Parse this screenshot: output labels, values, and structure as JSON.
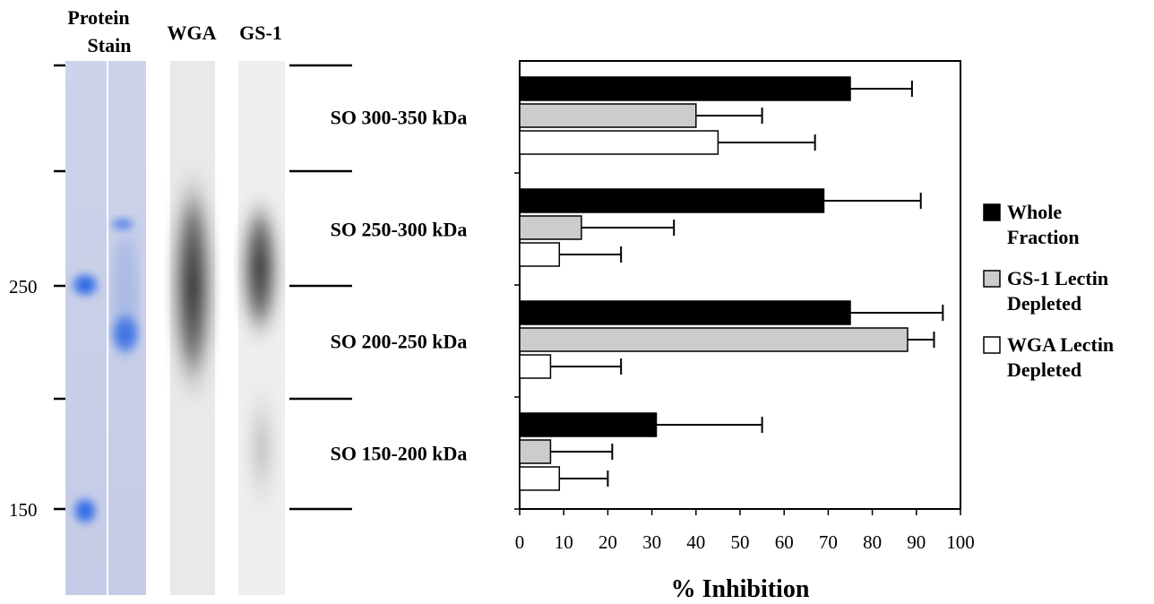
{
  "gel": {
    "headers": {
      "protein_stain_line1": "Protein",
      "protein_stain_line2": "Stain",
      "wga": "WGA",
      "gs1": "GS-1"
    },
    "markers": [
      "250",
      "150"
    ],
    "lane_colors": {
      "protein_background": "#c9cfe6",
      "protein_band": "#1f5fe0",
      "lectin_blot": "#2a2a2a"
    }
  },
  "chart_data": {
    "type": "bar",
    "orientation": "horizontal",
    "categories": [
      "SO 300-350 kDa",
      "SO 250-300 kDa",
      "SO 200-250 kDa",
      "SO 150-200 kDa"
    ],
    "series": [
      {
        "name": "Whole Fraction",
        "values": [
          75,
          69,
          75,
          31
        ],
        "errors": [
          14,
          22,
          21,
          24
        ],
        "color": "#000000"
      },
      {
        "name": "GS-1 Lectin Depleted",
        "values": [
          40,
          14,
          88,
          7
        ],
        "errors": [
          15,
          21,
          6,
          14
        ],
        "color": "#cccccc"
      },
      {
        "name": "WGA Lectin Depleted",
        "values": [
          45,
          9,
          7,
          9
        ],
        "errors": [
          22,
          14,
          16,
          11
        ],
        "color": "#ffffff"
      }
    ],
    "xlabel": "% Inhibition",
    "xlim": [
      0,
      100
    ],
    "xticks": [
      "0",
      "10",
      "20",
      "30",
      "40",
      "50",
      "60",
      "70",
      "80",
      "90",
      "100"
    ],
    "legend": {
      "position": "right",
      "entries": [
        {
          "line1": "Whole",
          "line2": "Fraction"
        },
        {
          "line1": "GS-1 Lectin",
          "line2": "Depleted"
        },
        {
          "line1": "WGA Lectin",
          "line2": "Depleted"
        }
      ]
    },
    "grid": false
  }
}
